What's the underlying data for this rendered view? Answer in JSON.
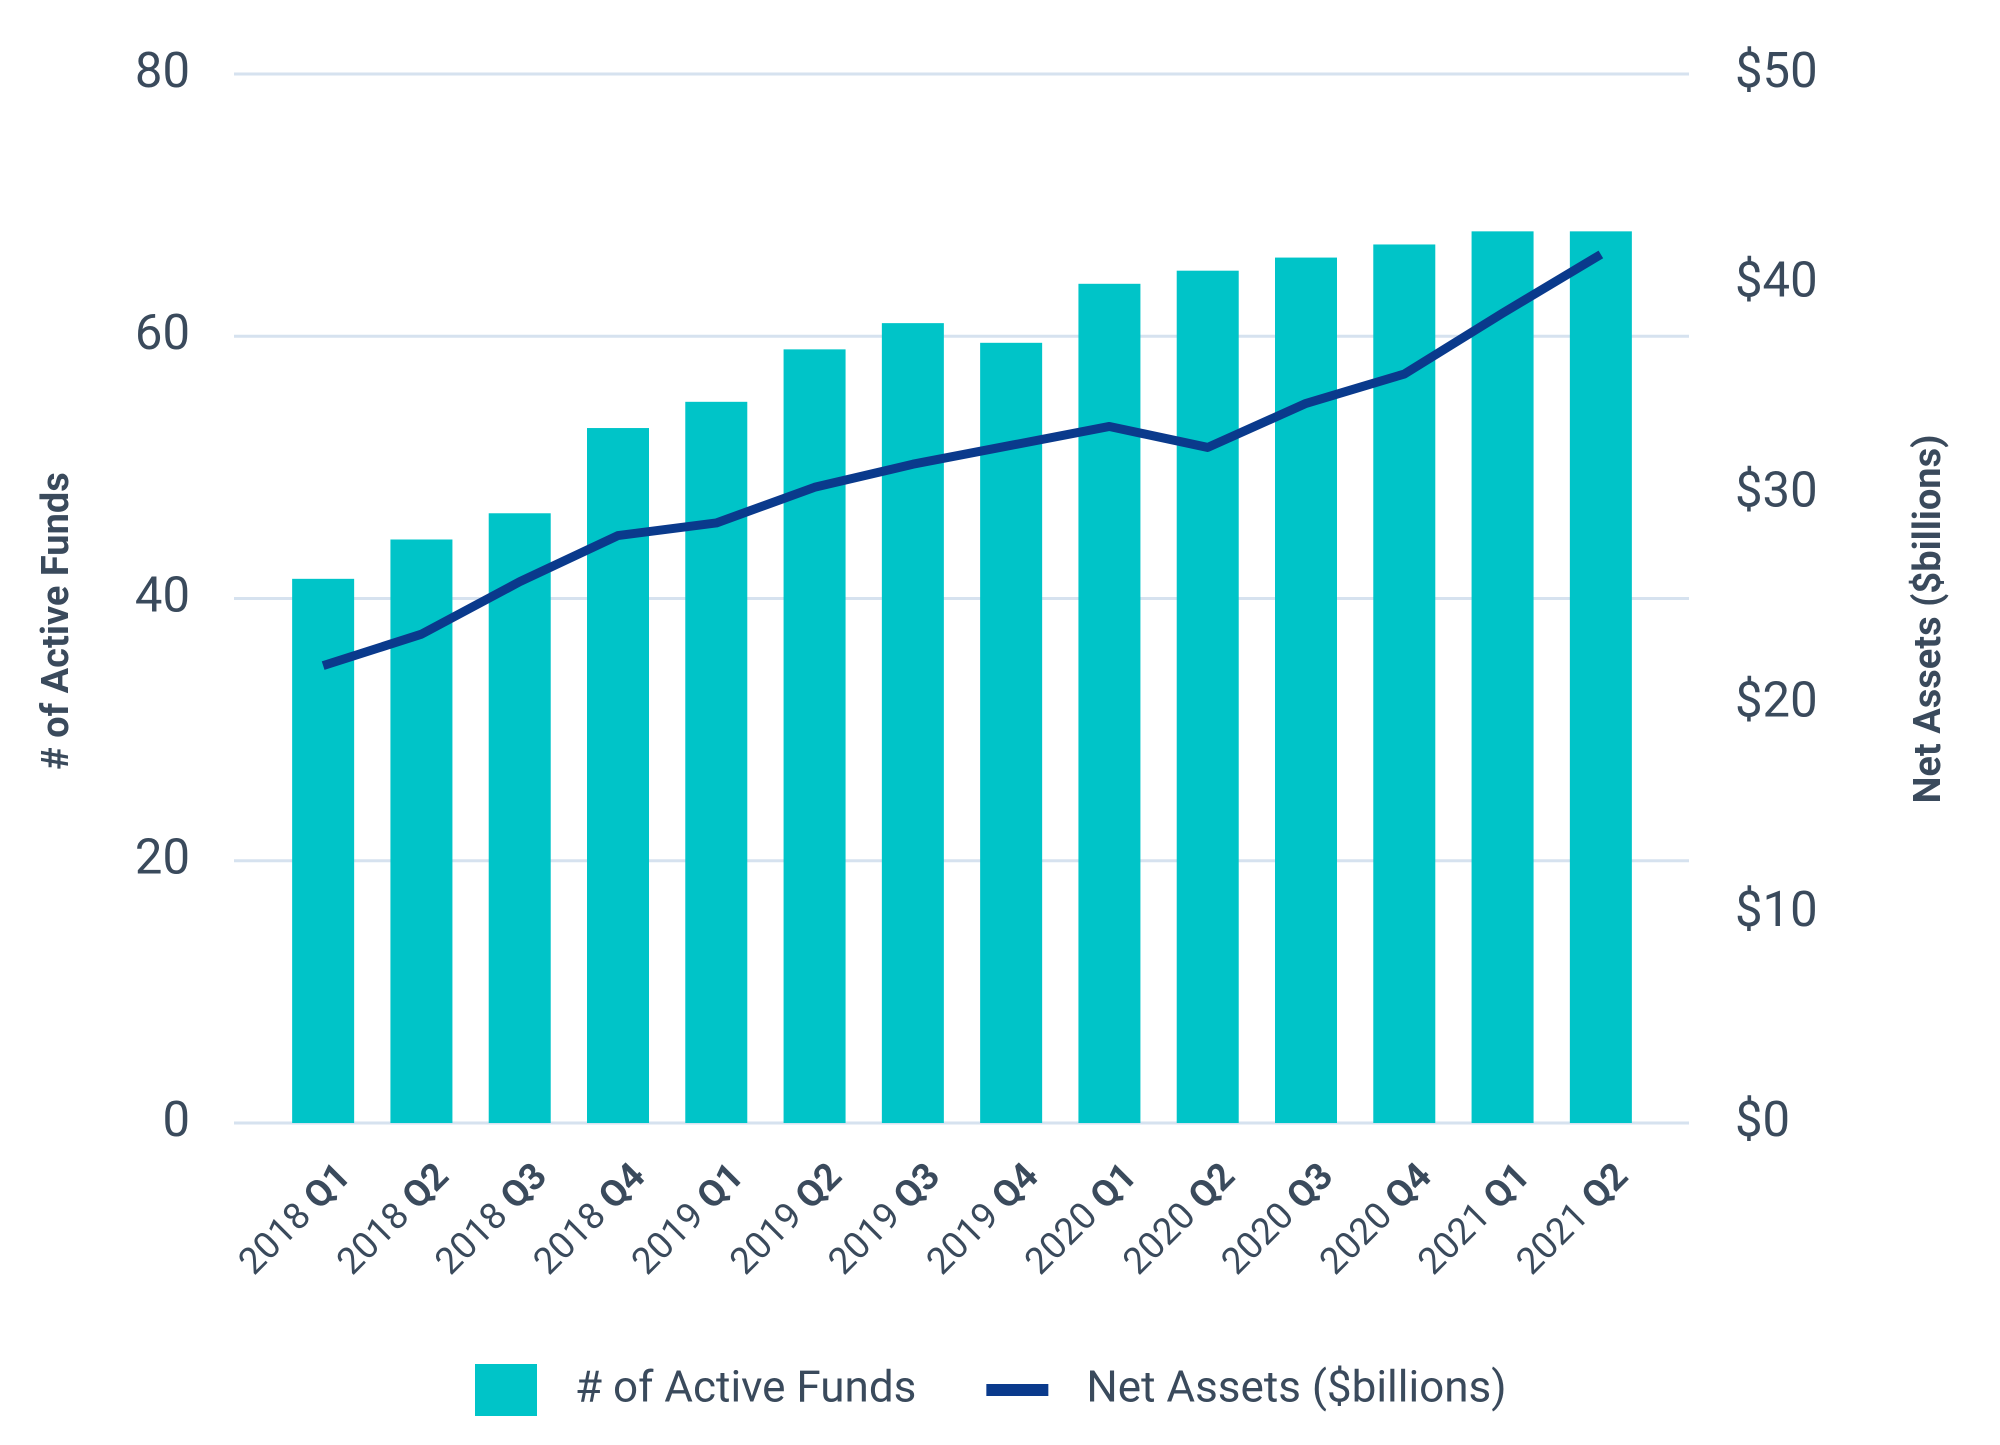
{
  "chart_data": {
    "type": "combo",
    "categories": [
      "2018 Q1",
      "2018 Q2",
      "2018 Q3",
      "2018 Q4",
      "2019 Q1",
      "2019 Q2",
      "2019 Q3",
      "2019 Q4",
      "2020 Q1",
      "2020 Q2",
      "2020 Q3",
      "2020 Q4",
      "2021 Q1",
      "2021 Q2"
    ],
    "series": [
      {
        "name": "# of Active Funds",
        "type": "bar",
        "color": "#00c4c8",
        "values": [
          41.5,
          44.5,
          46.5,
          53,
          55,
          59,
          61,
          59.5,
          64,
          65,
          66,
          67,
          68,
          68
        ]
      },
      {
        "name": "Net Assets ($billions)",
        "type": "line",
        "axis": "y2",
        "color": "#0a3a8c",
        "values": [
          21.8,
          23.3,
          25.8,
          28.0,
          28.6,
          30.3,
          31.4,
          32.3,
          33.2,
          32.2,
          34.3,
          35.7,
          38.6,
          41.4
        ]
      }
    ],
    "y_label": "# of Active Funds",
    "y2_label": "Net Assets ($billions)",
    "ylim": [
      0,
      80
    ],
    "yticks": [
      0,
      20,
      40,
      60,
      80
    ],
    "y2lim": [
      0,
      50
    ],
    "y2ticks": [
      {
        "value": 0,
        "label": "$0"
      },
      {
        "value": 10,
        "label": "$10"
      },
      {
        "value": 20,
        "label": "$20"
      },
      {
        "value": 30,
        "label": "$30"
      },
      {
        "value": 40,
        "label": "$40"
      },
      {
        "value": 50,
        "label": "$50"
      }
    ],
    "grid": true
  }
}
